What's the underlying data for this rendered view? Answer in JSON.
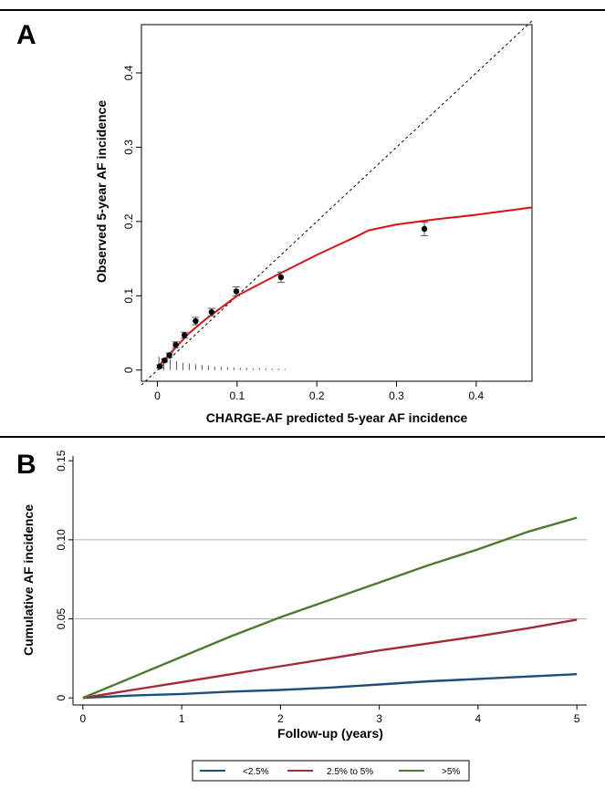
{
  "panels": {
    "a": {
      "letter": "A"
    },
    "b": {
      "letter": "B"
    }
  },
  "chart_data": [
    {
      "type": "scatter",
      "panel": "A",
      "xlabel": "CHARGE-AF predicted 5-year AF incidence",
      "ylabel": "Observed 5-year AF incidence",
      "xlim": [
        -0.02,
        0.47
      ],
      "ylim": [
        -0.015,
        0.465
      ],
      "xticks": [
        0,
        0.1,
        0.2,
        0.3,
        0.4
      ],
      "xtick_labels": [
        "0",
        "0.1",
        "0.2",
        "0.3",
        "0.4"
      ],
      "yticks": [
        0,
        0.1,
        0.2,
        0.3,
        0.4
      ],
      "ytick_labels": [
        "0",
        "0.1",
        "0.2",
        "0.3",
        "0.4"
      ],
      "grid": false,
      "reference_line": {
        "style": "dashed",
        "from": [
          -0.02,
          -0.02
        ],
        "to": [
          0.47,
          0.47
        ]
      },
      "points": [
        {
          "x": 0.003,
          "y": 0.005,
          "lo": 0.003,
          "hi": 0.007
        },
        {
          "x": 0.009,
          "y": 0.013,
          "lo": 0.011,
          "hi": 0.015
        },
        {
          "x": 0.015,
          "y": 0.02,
          "lo": 0.017,
          "hi": 0.023
        },
        {
          "x": 0.023,
          "y": 0.034,
          "lo": 0.03,
          "hi": 0.038
        },
        {
          "x": 0.034,
          "y": 0.047,
          "lo": 0.043,
          "hi": 0.051
        },
        {
          "x": 0.048,
          "y": 0.066,
          "lo": 0.061,
          "hi": 0.071
        },
        {
          "x": 0.068,
          "y": 0.078,
          "lo": 0.073,
          "hi": 0.083
        },
        {
          "x": 0.099,
          "y": 0.106,
          "lo": 0.1,
          "hi": 0.112
        },
        {
          "x": 0.155,
          "y": 0.125,
          "lo": 0.118,
          "hi": 0.132
        },
        {
          "x": 0.335,
          "y": 0.19,
          "lo": 0.181,
          "hi": 0.199
        }
      ],
      "error_bar_color": "#555555",
      "point_color": "#000000",
      "smooth_curve": {
        "color": "#dd1111",
        "x": [
          0.0,
          0.02,
          0.04,
          0.06,
          0.08,
          0.1,
          0.15,
          0.2,
          0.25,
          0.265,
          0.3,
          0.35,
          0.4,
          0.47
        ],
        "y": [
          0.003,
          0.027,
          0.05,
          0.068,
          0.084,
          0.1,
          0.128,
          0.155,
          0.18,
          0.188,
          0.196,
          0.203,
          0.209,
          0.219
        ]
      },
      "rug": {
        "color": "#555555",
        "x": [
          0.002,
          0.008,
          0.016,
          0.024,
          0.032,
          0.04,
          0.048,
          0.056,
          0.064,
          0.072,
          0.08,
          0.088,
          0.096,
          0.104,
          0.112,
          0.12,
          0.128,
          0.136,
          0.144,
          0.152,
          0.16
        ],
        "h": [
          0.018,
          0.016,
          0.014,
          0.012,
          0.01,
          0.009,
          0.008,
          0.007,
          0.006,
          0.005,
          0.0045,
          0.004,
          0.0035,
          0.003,
          0.003,
          0.0025,
          0.0025,
          0.002,
          0.002,
          0.002,
          0.0015
        ]
      }
    },
    {
      "type": "line",
      "panel": "B",
      "xlabel": "Follow-up (years)",
      "ylabel": "Cumulative AF incidence",
      "xlim": [
        -0.1,
        5.1
      ],
      "ylim": [
        -0.0045,
        0.153
      ],
      "xticks": [
        0,
        1,
        2,
        3,
        4,
        5
      ],
      "xtick_labels": [
        "0",
        "1",
        "2",
        "3",
        "4",
        "5"
      ],
      "yticks": [
        0,
        0.05,
        0.1,
        0.15
      ],
      "ytick_labels": [
        "0",
        "0.05",
        "0.10",
        "0.15"
      ],
      "grid": true,
      "gridlines_y": [
        0.05,
        0.1
      ],
      "legend_position": "bottom",
      "series": [
        {
          "name": "<2.5%",
          "color": "#1f4e79",
          "x": [
            0,
            0.5,
            1.0,
            1.5,
            2.0,
            2.5,
            3.0,
            3.5,
            4.0,
            4.5,
            5.0
          ],
          "y": [
            0,
            0.0015,
            0.0025,
            0.004,
            0.005,
            0.0065,
            0.0085,
            0.0105,
            0.012,
            0.0135,
            0.015
          ]
        },
        {
          "name": "2.5% to 5%",
          "color": "#a52a3a",
          "x": [
            0,
            0.5,
            1.0,
            1.5,
            2.0,
            2.5,
            3.0,
            3.5,
            4.0,
            4.5,
            5.0
          ],
          "y": [
            0,
            0.005,
            0.01,
            0.015,
            0.02,
            0.025,
            0.03,
            0.0345,
            0.039,
            0.044,
            0.0495
          ]
        },
        {
          "name": ">5%",
          "color": "#4c7a2e",
          "x": [
            0,
            0.5,
            1.0,
            1.5,
            2.0,
            2.5,
            3.0,
            3.5,
            4.0,
            4.5,
            5.0
          ],
          "y": [
            0,
            0.013,
            0.026,
            0.039,
            0.051,
            0.062,
            0.073,
            0.084,
            0.094,
            0.105,
            0.114
          ]
        }
      ]
    }
  ]
}
